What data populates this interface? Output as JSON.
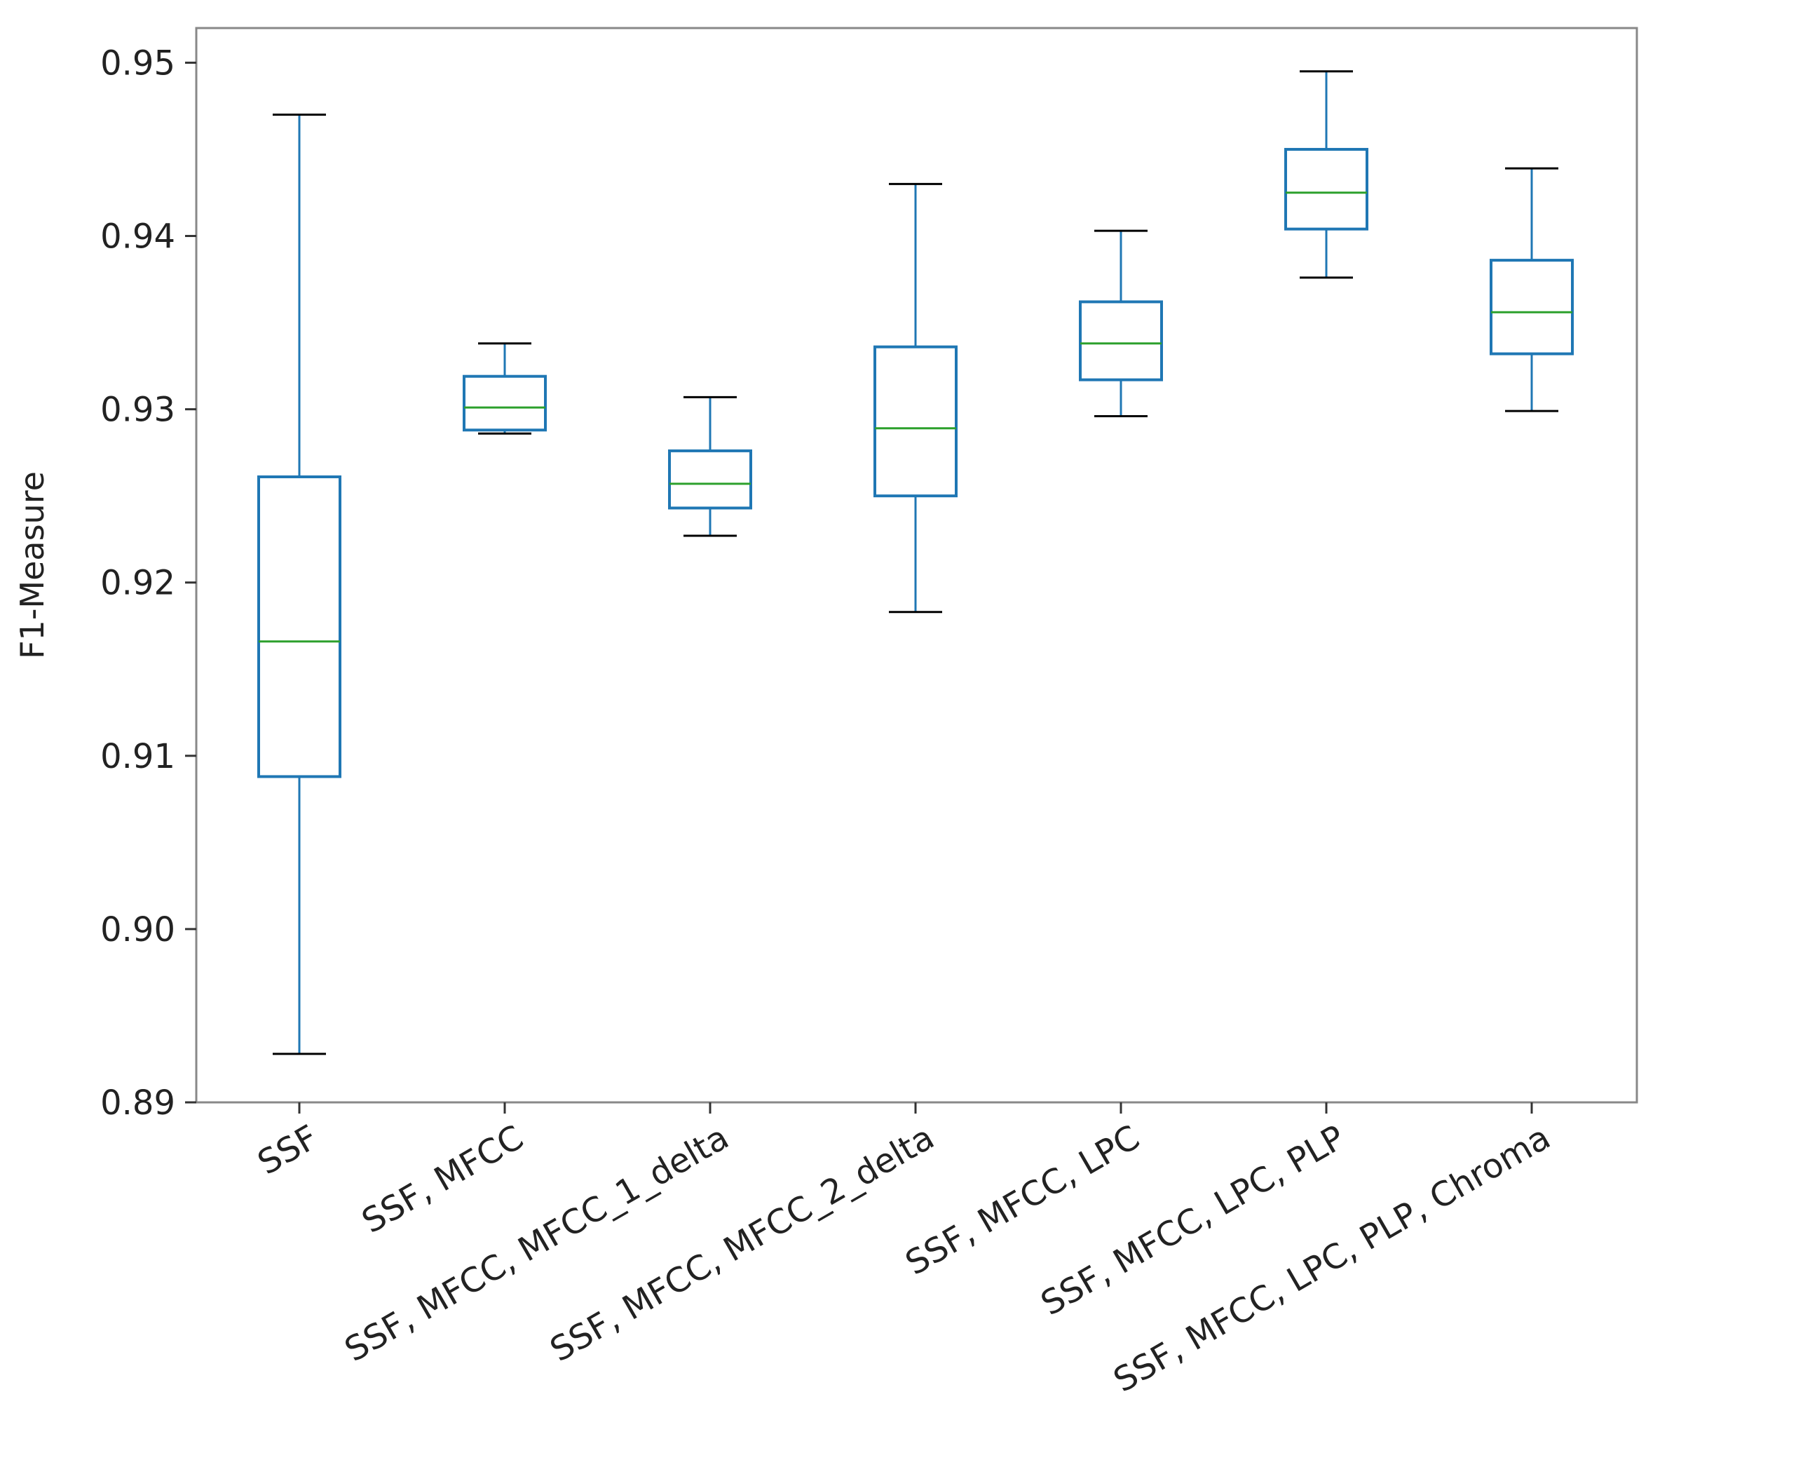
{
  "chart_data": {
    "type": "boxplot",
    "title": "",
    "xlabel": "",
    "ylabel": "F1-Measure",
    "ylim": [
      0.89,
      0.952
    ],
    "yticks": [
      0.89,
      0.9,
      0.91,
      0.92,
      0.93,
      0.94,
      0.95
    ],
    "ytick_labels": [
      "0.89",
      "0.90",
      "0.91",
      "0.92",
      "0.93",
      "0.94",
      "0.95"
    ],
    "grid": false,
    "colors": {
      "box": "#1f77b4",
      "median": "#2ca02c",
      "cap": "#000000",
      "frame": "#888888"
    },
    "categories": [
      "SSF",
      "SSF, MFCC",
      "SSF, MFCC, MFCC_1_delta",
      "SSF, MFCC, MFCC_2_delta",
      "SSF, MFCC, LPC",
      "SSF, MFCC, LPC, PLP",
      "SSF, MFCC, LPC, PLP, Chroma"
    ],
    "boxes": [
      {
        "whislo": 0.8928,
        "q1": 0.9088,
        "med": 0.9166,
        "q3": 0.9261,
        "whishi": 0.947
      },
      {
        "whislo": 0.9286,
        "q1": 0.9288,
        "med": 0.9301,
        "q3": 0.9319,
        "whishi": 0.9338
      },
      {
        "whislo": 0.9227,
        "q1": 0.9243,
        "med": 0.9257,
        "q3": 0.9276,
        "whishi": 0.9307
      },
      {
        "whislo": 0.9183,
        "q1": 0.925,
        "med": 0.9289,
        "q3": 0.9336,
        "whishi": 0.943
      },
      {
        "whislo": 0.9296,
        "q1": 0.9317,
        "med": 0.9338,
        "q3": 0.9362,
        "whishi": 0.9403
      },
      {
        "whislo": 0.9376,
        "q1": 0.9404,
        "med": 0.9425,
        "q3": 0.945,
        "whishi": 0.9495
      },
      {
        "whislo": 0.9299,
        "q1": 0.9332,
        "med": 0.9356,
        "q3": 0.9386,
        "whishi": 0.9439
      }
    ]
  }
}
